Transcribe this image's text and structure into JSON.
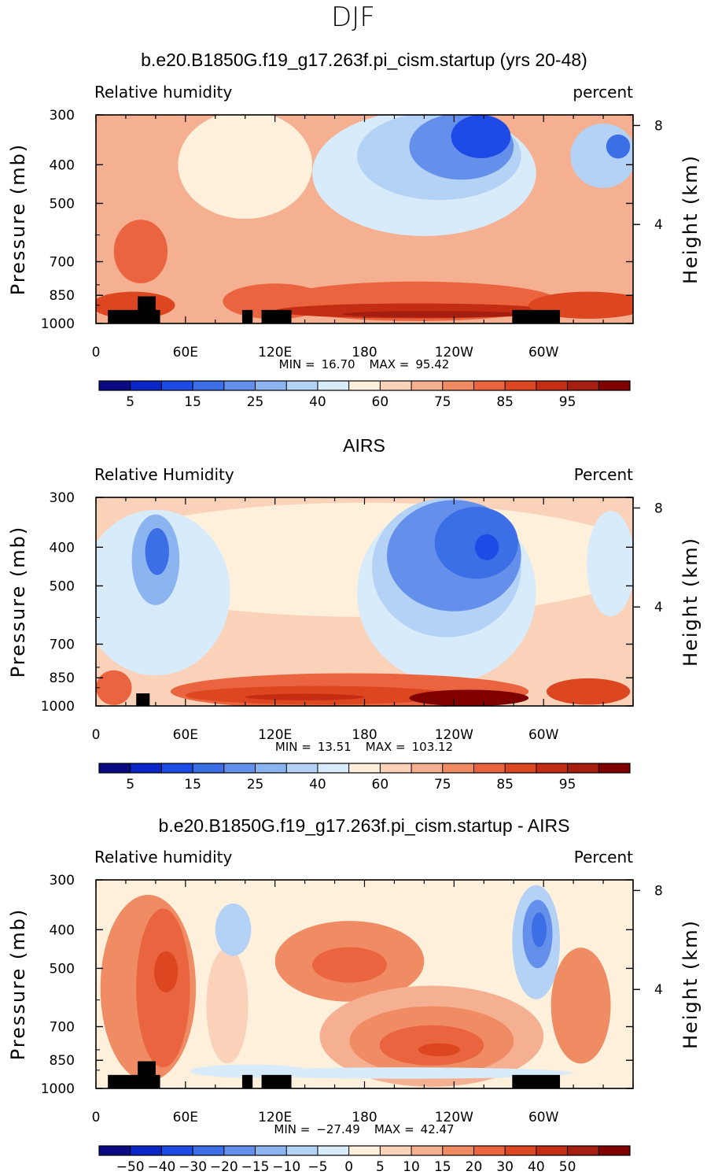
{
  "figure_title": "DJF",
  "chart_data": [
    {
      "type": "heatmap",
      "title": "b.e20.B1850G.f19_g17.263f.pi_cism.startup (yrs 20-48)",
      "left_label": "Relative humidity",
      "right_label": "percent",
      "ylabel": "Pressure (mb)",
      "y2label": "Height (km)",
      "yticks": [
        "300",
        "400",
        "500",
        "700",
        "850",
        "1000"
      ],
      "y2ticks": [
        "8",
        "4"
      ],
      "xticks": [
        "0",
        "60E",
        "120E",
        "180",
        "120W",
        "60W"
      ],
      "xlim": [
        0,
        360
      ],
      "ylim": [
        1000,
        300
      ],
      "min_label": "MIN =",
      "min_value": "16.70",
      "max_label": "MAX =",
      "max_value": "95.42",
      "colorbar_ticks": [
        "5",
        "15",
        "25",
        "40",
        "60",
        "75",
        "85",
        "95"
      ],
      "colorbar_colors": [
        "#0a0a82",
        "#0a28c8",
        "#1e4be6",
        "#3c6ee6",
        "#6490eb",
        "#8cb4f0",
        "#b4d2f5",
        "#d7ebfa",
        "#fff0dc",
        "#fad2b9",
        "#f5af91",
        "#f08c64",
        "#eb6440",
        "#dc4620",
        "#c32d14",
        "#a51e0f",
        "#800000"
      ],
      "fill_background": "#f5af91",
      "regions": [
        {
          "lon": 30,
          "p": 660,
          "rx": 18,
          "rp": 120,
          "color": "#eb6440"
        },
        {
          "lon": 25,
          "p": 900,
          "rx": 28,
          "rp": 70,
          "color": "#dc4620"
        },
        {
          "lon": 120,
          "p": 880,
          "rx": 35,
          "rp": 90,
          "color": "#eb6440"
        },
        {
          "lon": 215,
          "p": 880,
          "rx": 95,
          "rp": 100,
          "color": "#eb6440"
        },
        {
          "lon": 215,
          "p": 930,
          "rx": 95,
          "rp": 40,
          "color": "#c32d14"
        },
        {
          "lon": 225,
          "p": 948,
          "rx": 60,
          "rp": 18,
          "color": "#a51e0f"
        },
        {
          "lon": 330,
          "p": 900,
          "rx": 40,
          "rp": 70,
          "color": "#dc4620"
        },
        {
          "lon": 100,
          "p": 400,
          "rx": 45,
          "rp": 160,
          "color": "#fff0dc"
        },
        {
          "lon": 220,
          "p": 420,
          "rx": 75,
          "rp": 200,
          "color": "#d7ebfa"
        },
        {
          "lon": 230,
          "p": 380,
          "rx": 55,
          "rp": 120,
          "color": "#b4d2f5"
        },
        {
          "lon": 245,
          "p": 360,
          "rx": 35,
          "rp": 80,
          "color": "#6490eb"
        },
        {
          "lon": 258,
          "p": 340,
          "rx": 20,
          "rp": 45,
          "color": "#1e4be6"
        },
        {
          "lon": 340,
          "p": 380,
          "rx": 22,
          "rp": 70,
          "color": "#b4d2f5"
        },
        {
          "lon": 350,
          "p": 360,
          "rx": 8,
          "rp": 25,
          "color": "#3c6ee6"
        }
      ],
      "topography": [
        {
          "lon0": 8,
          "lon1": 43,
          "p_top": 925
        },
        {
          "lon0": 28,
          "lon1": 40,
          "p_top": 855
        },
        {
          "lon0": 98,
          "lon1": 105,
          "p_top": 925
        },
        {
          "lon0": 111,
          "lon1": 131,
          "p_top": 925
        },
        {
          "lon0": 279,
          "lon1": 311,
          "p_top": 925
        }
      ]
    },
    {
      "type": "heatmap",
      "title": "AIRS",
      "left_label": "Relative Humidity",
      "right_label": "Percent",
      "ylabel": "Pressure (mb)",
      "y2label": "Height (km)",
      "yticks": [
        "300",
        "400",
        "500",
        "700",
        "850",
        "1000"
      ],
      "y2ticks": [
        "8",
        "4"
      ],
      "xticks": [
        "0",
        "60E",
        "120E",
        "180",
        "120W",
        "60W"
      ],
      "xlim": [
        0,
        360
      ],
      "ylim": [
        1000,
        300
      ],
      "min_label": "MIN =",
      "min_value": "13.51",
      "max_label": "MAX =",
      "max_value": "103.12",
      "colorbar_ticks": [
        "5",
        "15",
        "25",
        "40",
        "60",
        "75",
        "85",
        "95"
      ],
      "colorbar_colors": [
        "#0a0a82",
        "#0a28c8",
        "#1e4be6",
        "#3c6ee6",
        "#6490eb",
        "#8cb4f0",
        "#b4d2f5",
        "#d7ebfa",
        "#fff0dc",
        "#fad2b9",
        "#f5af91",
        "#f08c64",
        "#eb6440",
        "#dc4620",
        "#c32d14",
        "#a51e0f",
        "#800000"
      ],
      "fill_background": "#fad2b9",
      "regions": [
        {
          "lon": 180,
          "p": 430,
          "rx": 190,
          "rp": 150,
          "color": "#fff0dc"
        },
        {
          "lon": 40,
          "p": 520,
          "rx": 50,
          "rp": 260,
          "color": "#d7ebfa"
        },
        {
          "lon": 40,
          "p": 430,
          "rx": 16,
          "rp": 110,
          "color": "#8cb4f0"
        },
        {
          "lon": 41,
          "p": 410,
          "rx": 8,
          "rp": 55,
          "color": "#3c6ee6"
        },
        {
          "lon": 235,
          "p": 520,
          "rx": 60,
          "rp": 330,
          "color": "#d7ebfa"
        },
        {
          "lon": 235,
          "p": 450,
          "rx": 50,
          "rp": 220,
          "color": "#b4d2f5"
        },
        {
          "lon": 240,
          "p": 420,
          "rx": 45,
          "rp": 150,
          "color": "#6490eb"
        },
        {
          "lon": 255,
          "p": 390,
          "rx": 28,
          "rp": 80,
          "color": "#3c6ee6"
        },
        {
          "lon": 262,
          "p": 400,
          "rx": 8,
          "rp": 30,
          "color": "#1e4be6"
        },
        {
          "lon": 345,
          "p": 440,
          "rx": 16,
          "rp": 130,
          "color": "#d7ebfa"
        },
        {
          "lon": 170,
          "p": 920,
          "rx": 120,
          "rp": 110,
          "color": "#eb6440"
        },
        {
          "lon": 150,
          "p": 940,
          "rx": 90,
          "rp": 50,
          "color": "#dc4620"
        },
        {
          "lon": 140,
          "p": 950,
          "rx": 40,
          "rp": 18,
          "color": "#c32d14"
        },
        {
          "lon": 250,
          "p": 955,
          "rx": 40,
          "rp": 45,
          "color": "#800000"
        },
        {
          "lon": 12,
          "p": 900,
          "rx": 12,
          "rp": 90,
          "color": "#eb6440"
        },
        {
          "lon": 330,
          "p": 920,
          "rx": 28,
          "rp": 70,
          "color": "#dc4620"
        }
      ],
      "topography": [
        {
          "lon0": 27,
          "lon1": 36,
          "p_top": 930
        }
      ]
    },
    {
      "type": "heatmap",
      "title": "b.e20.B1850G.f19_g17.263f.pi_cism.startup - AIRS",
      "left_label": "Relative humidity",
      "right_label": "Percent",
      "ylabel": "Pressure (mb)",
      "y2label": "Height (km)",
      "yticks": [
        "300",
        "400",
        "500",
        "700",
        "850",
        "1000"
      ],
      "y2ticks": [
        "8",
        "4"
      ],
      "xticks": [
        "0",
        "60E",
        "120E",
        "180",
        "120W",
        "60W"
      ],
      "xlim": [
        0,
        360
      ],
      "ylim": [
        1000,
        300
      ],
      "min_label": "MIN =",
      "min_value": "−27.49",
      "max_label": "MAX =",
      "max_value": "42.47",
      "colorbar_ticks": [
        "−50",
        "−40",
        "−30",
        "−20",
        "−15",
        "−10",
        "−5",
        "0",
        "5",
        "10",
        "15",
        "20",
        "30",
        "40",
        "50"
      ],
      "colorbar_colors": [
        "#0a0a82",
        "#0a28c8",
        "#1e4be6",
        "#3c6ee6",
        "#6490eb",
        "#8cb4f0",
        "#b4d2f5",
        "#d7ebfa",
        "#fff0dc",
        "#fad2b9",
        "#f5af91",
        "#f08c64",
        "#eb6440",
        "#dc4620",
        "#c32d14",
        "#a51e0f",
        "#800000"
      ],
      "fill_background": "#fff0dc",
      "regions": [
        {
          "lon": 35,
          "p": 560,
          "rx": 32,
          "rp": 320,
          "color": "#f08c64"
        },
        {
          "lon": 45,
          "p": 560,
          "rx": 18,
          "rp": 240,
          "color": "#eb6440"
        },
        {
          "lon": 47,
          "p": 510,
          "rx": 8,
          "rp": 60,
          "color": "#dc4620"
        },
        {
          "lon": 88,
          "p": 620,
          "rx": 14,
          "rp": 200,
          "color": "#fad2b9"
        },
        {
          "lon": 92,
          "p": 400,
          "rx": 12,
          "rp": 60,
          "color": "#b4d2f5"
        },
        {
          "lon": 170,
          "p": 480,
          "rx": 50,
          "rp": 110,
          "color": "#f08c64"
        },
        {
          "lon": 170,
          "p": 490,
          "rx": 25,
          "rp": 50,
          "color": "#eb6440"
        },
        {
          "lon": 225,
          "p": 740,
          "rx": 75,
          "rp": 210,
          "color": "#f5af91"
        },
        {
          "lon": 225,
          "p": 760,
          "rx": 55,
          "rp": 150,
          "color": "#f08c64"
        },
        {
          "lon": 225,
          "p": 780,
          "rx": 35,
          "rp": 90,
          "color": "#eb6440"
        },
        {
          "lon": 230,
          "p": 800,
          "rx": 14,
          "rp": 30,
          "color": "#dc4620"
        },
        {
          "lon": 295,
          "p": 430,
          "rx": 16,
          "rp": 150,
          "color": "#b4d2f5"
        },
        {
          "lon": 296,
          "p": 410,
          "rx": 10,
          "rp": 80,
          "color": "#6490eb"
        },
        {
          "lon": 297,
          "p": 400,
          "rx": 5,
          "rp": 40,
          "color": "#3c6ee6"
        },
        {
          "lon": 325,
          "p": 620,
          "rx": 20,
          "rp": 200,
          "color": "#f08c64"
        },
        {
          "lon": 205,
          "p": 915,
          "rx": 115,
          "rp": 30,
          "color": "#d7ebfa"
        },
        {
          "lon": 103,
          "p": 905,
          "rx": 40,
          "rp": 35,
          "color": "#d7ebfa"
        }
      ],
      "topography": [
        {
          "lon0": 8,
          "lon1": 43,
          "p_top": 925
        },
        {
          "lon0": 28,
          "lon1": 40,
          "p_top": 855
        },
        {
          "lon0": 98,
          "lon1": 105,
          "p_top": 925
        },
        {
          "lon0": 111,
          "lon1": 131,
          "p_top": 925
        },
        {
          "lon0": 279,
          "lon1": 311,
          "p_top": 925
        }
      ]
    }
  ]
}
